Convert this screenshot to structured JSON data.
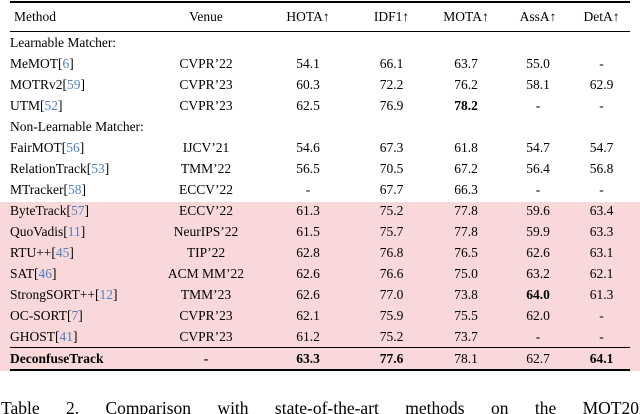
{
  "colors": {
    "highlight_pink": "#f9d8da",
    "citation_blue": "#4b82c4",
    "rule_black": "#000000",
    "page_background": "#ffffff"
  },
  "caption": "Table 2. Comparison with state-of-the-art methods on the MOT20",
  "table": {
    "columns": [
      "Method",
      "Venue",
      "HOTA↑",
      "IDF1↑",
      "MOTA↑",
      "AssA↑",
      "DetA↑"
    ],
    "rows": [
      {
        "type": "group",
        "label": "Learnable Matcher:"
      },
      {
        "type": "data",
        "name": "MeMOT",
        "ref": "6",
        "venue": "CVPR’22",
        "values": [
          "54.1",
          "66.1",
          "63.7",
          "55.0",
          "-"
        ]
      },
      {
        "type": "data",
        "name": "MOTRv2",
        "ref": "59",
        "venue": "CVPR’23",
        "values": [
          "60.3",
          "72.2",
          "76.2",
          "58.1",
          "62.9"
        ]
      },
      {
        "type": "data",
        "name": "UTM",
        "ref": "52",
        "venue": "CVPR’23",
        "values": [
          "62.5",
          "76.9",
          "78.2",
          "-",
          "-"
        ],
        "bold_values": [
          2
        ]
      },
      {
        "type": "group",
        "label": "Non-Learnable Matcher:"
      },
      {
        "type": "data",
        "name": "FairMOT",
        "ref": "56",
        "venue": "IJCV’21",
        "values": [
          "54.6",
          "67.3",
          "61.8",
          "54.7",
          "54.7"
        ]
      },
      {
        "type": "data",
        "name": "RelationTrack",
        "ref": "53",
        "venue": "TMM’22",
        "values": [
          "56.5",
          "70.5",
          "67.2",
          "56.4",
          "56.8"
        ]
      },
      {
        "type": "data",
        "name": "MTracker",
        "ref": "58",
        "venue": "ECCV’22",
        "values": [
          "-",
          "67.7",
          "66.3",
          "-",
          "-"
        ]
      },
      {
        "type": "data",
        "name": "ByteTrack",
        "ref": "57",
        "venue": "ECCV’22",
        "values": [
          "61.3",
          "75.2",
          "77.8",
          "59.6",
          "63.4"
        ],
        "highlight": true
      },
      {
        "type": "data",
        "name": "QuoVadis",
        "ref": "11",
        "venue": "NeurIPS’22",
        "values": [
          "61.5",
          "75.7",
          "77.8",
          "59.9",
          "63.3"
        ],
        "highlight": true
      },
      {
        "type": "data",
        "name": "RTU++",
        "ref": "45",
        "venue": "TIP’22",
        "values": [
          "62.8",
          "76.8",
          "76.5",
          "62.6",
          "63.1"
        ],
        "highlight": true
      },
      {
        "type": "data",
        "name": "SAT",
        "ref": "46",
        "venue": "ACM MM’22",
        "values": [
          "62.6",
          "76.6",
          "75.0",
          "63.2",
          "62.1"
        ],
        "highlight": true
      },
      {
        "type": "data",
        "name": "StrongSORT++",
        "ref": "12",
        "venue": "TMM’23",
        "values": [
          "62.6",
          "77.0",
          "73.8",
          "64.0",
          "61.3"
        ],
        "bold_values": [
          3
        ],
        "highlight": true
      },
      {
        "type": "data",
        "name": "OC-SORT",
        "ref": "7",
        "venue": "CVPR’23",
        "values": [
          "62.1",
          "75.9",
          "75.5",
          "62.0",
          "-"
        ],
        "highlight": true
      },
      {
        "type": "data",
        "name": "GHOST",
        "ref": "41",
        "venue": "CVPR’23",
        "values": [
          "61.2",
          "75.2",
          "73.7",
          "-",
          "-"
        ],
        "highlight": true
      },
      {
        "type": "data",
        "name": "DeconfuseTrack",
        "ref": null,
        "venue": "-",
        "values": [
          "63.3",
          "77.6",
          "78.1",
          "62.7",
          "64.1"
        ],
        "bold_values": [
          0,
          1,
          4
        ],
        "name_bold": true,
        "venue_bold": true,
        "rule_above": true,
        "highlight": true
      }
    ]
  }
}
